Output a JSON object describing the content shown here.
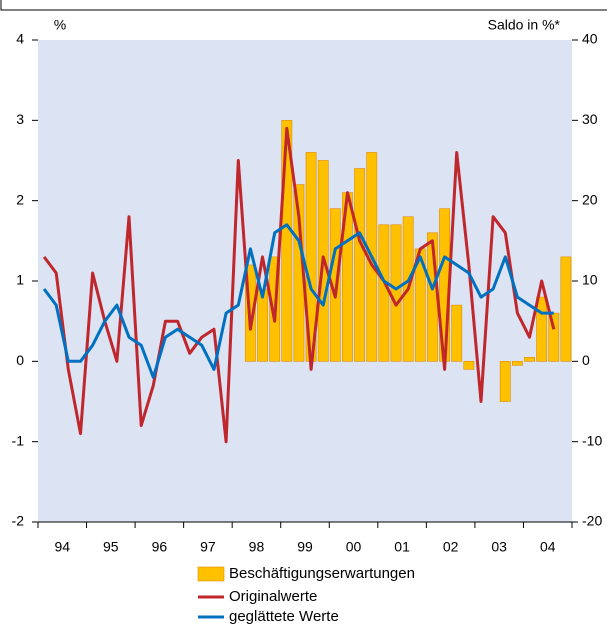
{
  "chart_data": {
    "type": "bar-line",
    "y_unit_label": "%",
    "y2_unit_label": "Saldo in %*",
    "year_labels": [
      "94",
      "95",
      "96",
      "97",
      "98",
      "99",
      "00",
      "01",
      "02",
      "03",
      "04"
    ],
    "ylim": [
      -2,
      4
    ],
    "yticks": [
      -2,
      -1,
      0,
      1,
      2,
      3,
      4
    ],
    "y2lim": [
      -20,
      40
    ],
    "y2ticks": [
      -20,
      -10,
      0,
      10,
      20,
      30,
      40
    ],
    "series": [
      {
        "name": "Beschäftigungserwartungen",
        "kind": "bar",
        "axis": "y2",
        "color": "#ffc000",
        "values": [
          null,
          null,
          null,
          null,
          null,
          null,
          null,
          null,
          null,
          null,
          null,
          null,
          null,
          null,
          null,
          null,
          null,
          12,
          9,
          13,
          30,
          22,
          26,
          25,
          19,
          21,
          24,
          26,
          17,
          17,
          18,
          14,
          16,
          19,
          7,
          -1,
          null,
          null,
          -5,
          -0.5,
          0.5,
          8,
          6,
          13
        ]
      },
      {
        "name": "Originalwerte",
        "kind": "line",
        "color": "#c0272d",
        "values": [
          1.3,
          1.1,
          -0.1,
          -0.9,
          1.1,
          0.5,
          0,
          1.8,
          -0.8,
          -0.3,
          0.5,
          0.5,
          0.1,
          0.3,
          0.4,
          -1.0,
          2.5,
          0.4,
          1.3,
          0.5,
          2.9,
          1.8,
          -0.1,
          1.3,
          0.8,
          2.1,
          1.5,
          1.2,
          1.0,
          0.7,
          0.9,
          1.4,
          1.5,
          -0.1,
          2.6,
          1.2,
          -0.5,
          1.8,
          1.6,
          0.6,
          0.3,
          1.0,
          0.4,
          null
        ]
      },
      {
        "name": "geglättete Werte",
        "kind": "line",
        "color": "#0070c0",
        "values": [
          0.9,
          0.7,
          0,
          0,
          0.2,
          0.5,
          0.7,
          0.3,
          0.2,
          -0.2,
          0.3,
          0.4,
          0.3,
          0.2,
          -0.1,
          0.6,
          0.7,
          1.4,
          0.8,
          1.6,
          1.7,
          1.5,
          0.9,
          0.7,
          1.4,
          1.5,
          1.6,
          1.3,
          1.0,
          0.9,
          1.0,
          1.3,
          0.9,
          1.3,
          1.2,
          1.1,
          0.8,
          0.9,
          1.3,
          0.8,
          0.7,
          0.6,
          0.6,
          null
        ]
      }
    ]
  }
}
